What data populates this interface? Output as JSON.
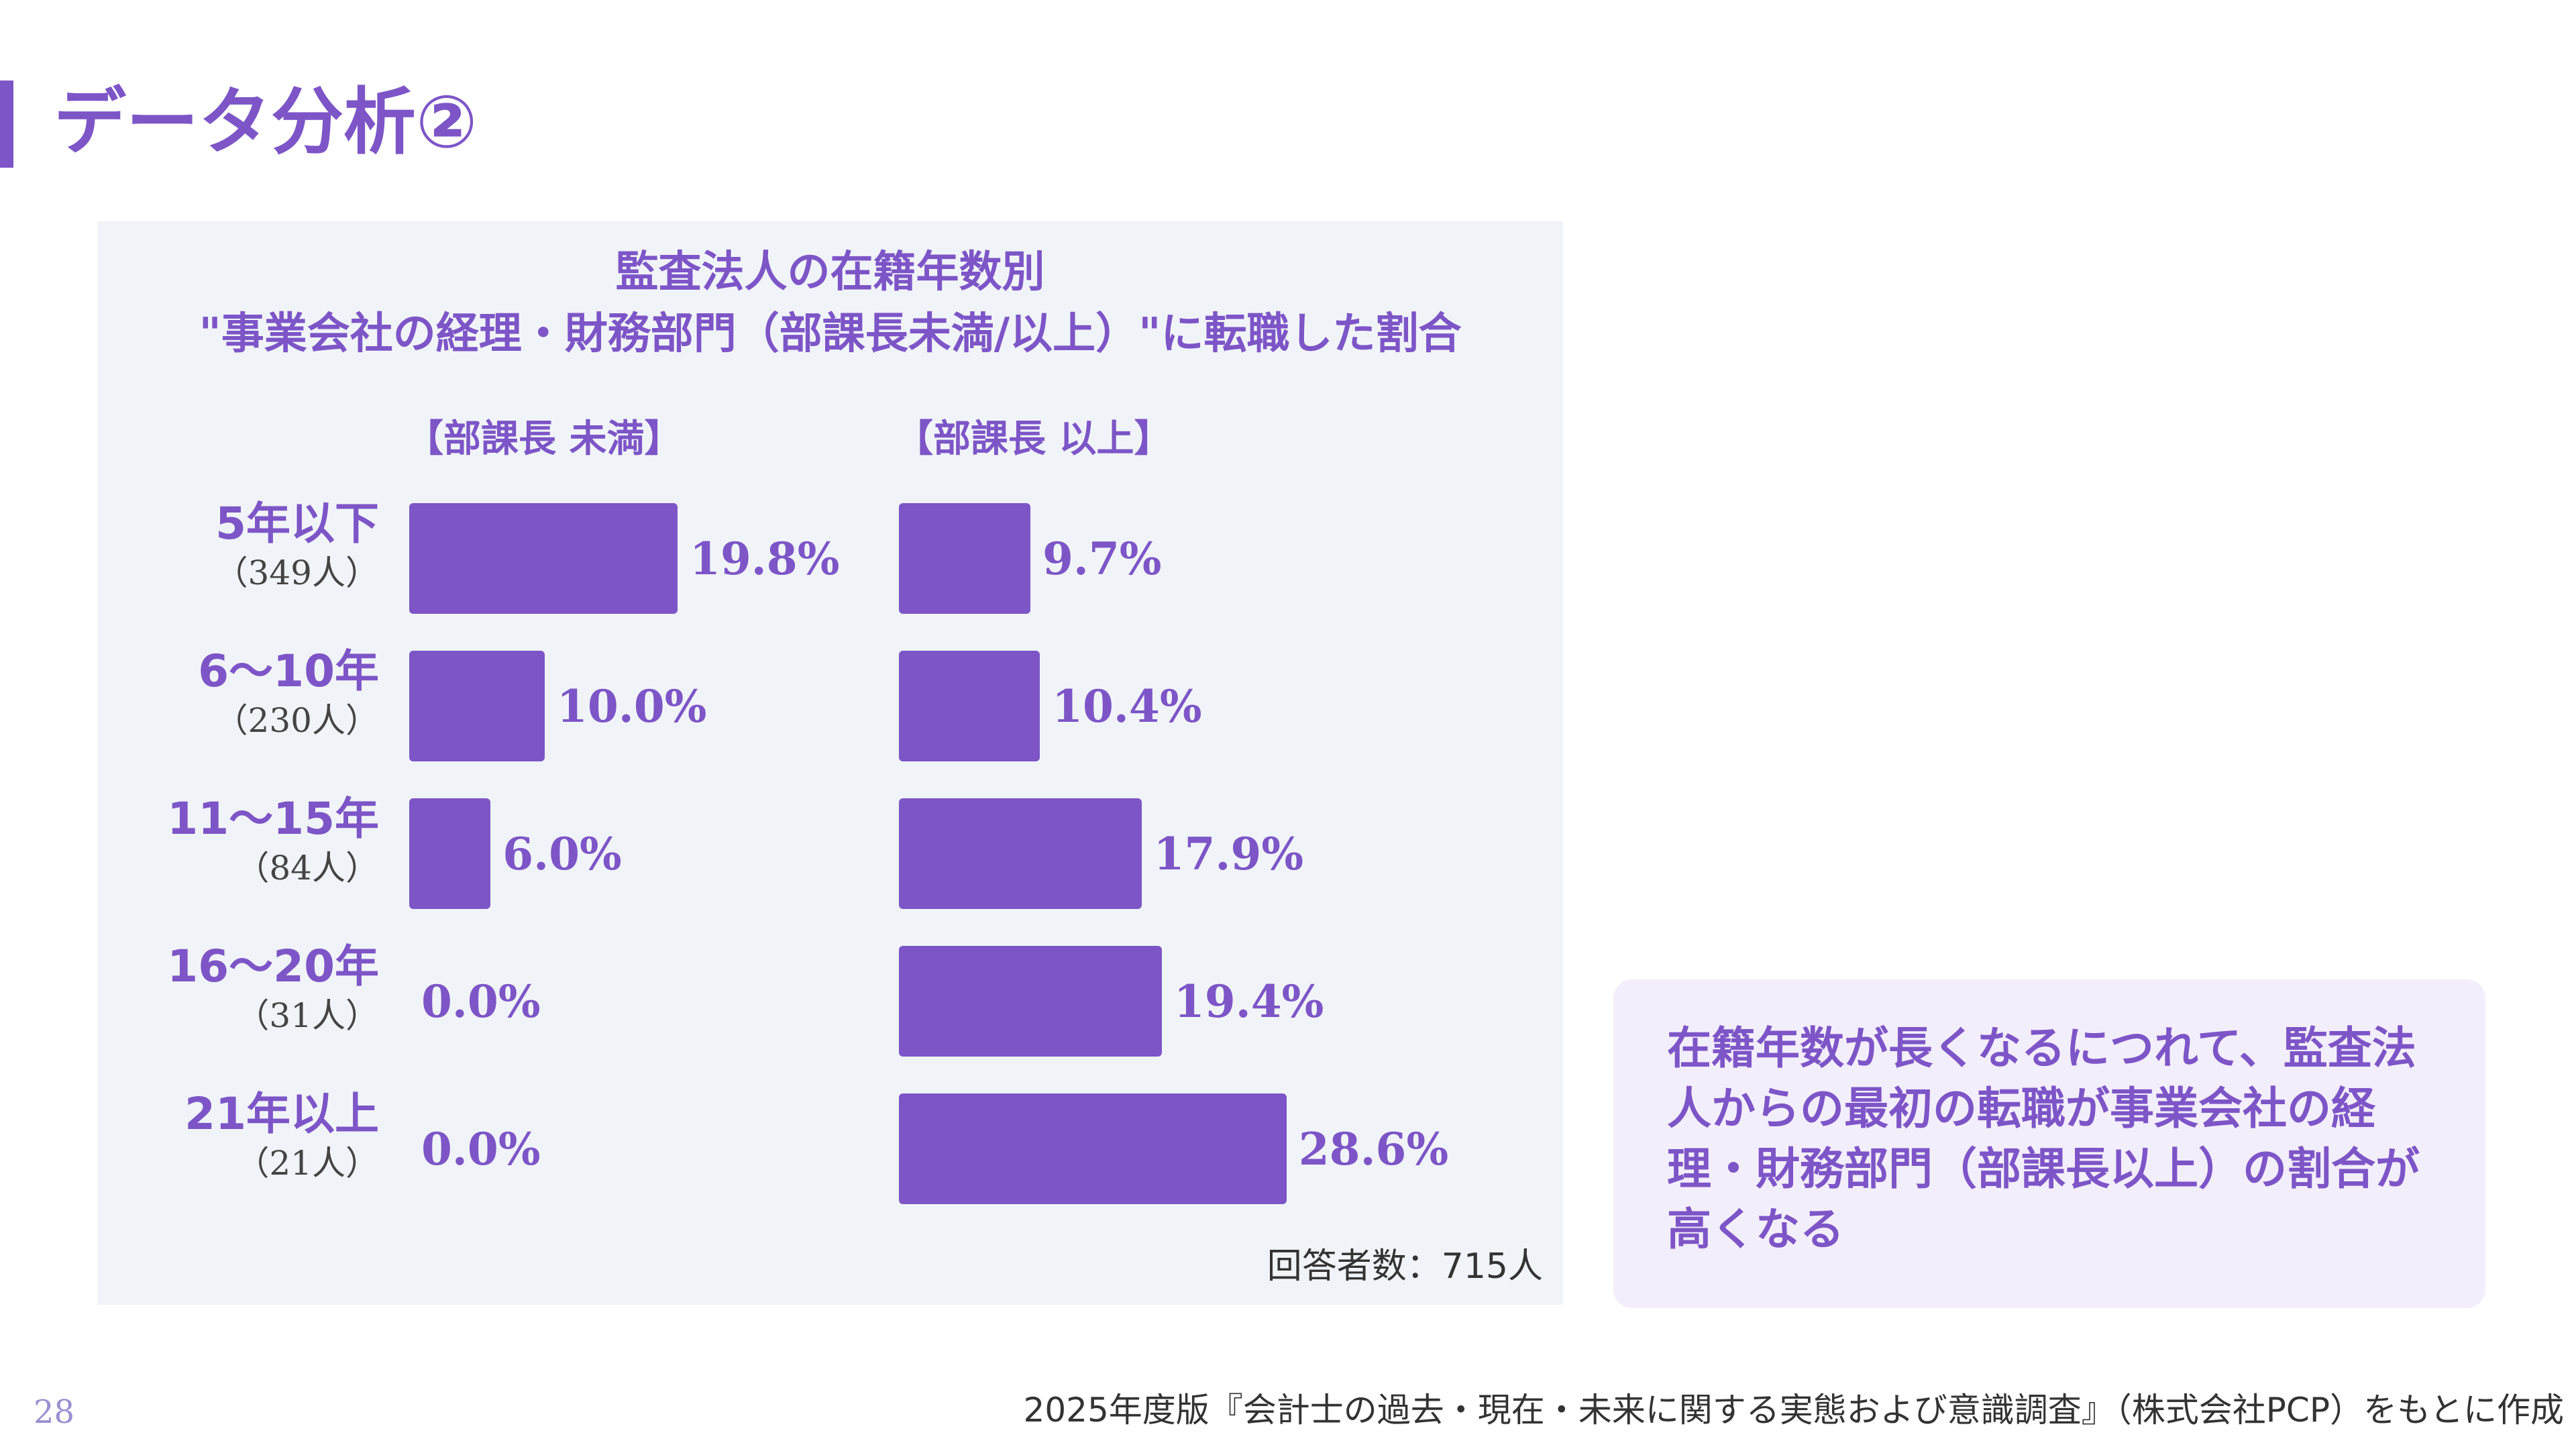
{
  "slide": {
    "title": "データ分析②",
    "page_number": "28",
    "source": "2025年度版『会計士の過去・現在・未来に関する実態および意識調査』（株式会社PCP）をもとに作成"
  },
  "note": {
    "text": "在籍年数が長くなるにつれて、監査法人からの最初の転職が事業会社の経理・財務部門（部課長以上）の割合が高くなる"
  },
  "chart_data": {
    "type": "bar",
    "orientation": "horizontal",
    "title_line1": "監査法人の在籍年数別",
    "title_line2": "\"事業会社の経理・財務部門（部課長未満/以上）\"に転職した割合",
    "categories": [
      "5年以下",
      "6〜10年",
      "11〜15年",
      "16〜20年",
      "21年以上"
    ],
    "category_counts": [
      "（349人）",
      "（230人）",
      "（84人）",
      "（31人）",
      "（21人）"
    ],
    "series": [
      {
        "name": "【部課長 未満】",
        "values": [
          19.8,
          10.0,
          6.0,
          0.0,
          0.0
        ],
        "labels": [
          "19.8%",
          "10.0%",
          "6.0%",
          "0.0%",
          "0.0%"
        ]
      },
      {
        "name": "【部課長 以上】",
        "values": [
          9.7,
          10.4,
          17.9,
          19.4,
          28.6
        ],
        "labels": [
          "9.7%",
          "10.4%",
          "17.9%",
          "19.4%",
          "28.6%"
        ]
      }
    ],
    "respondents": "回答者数：715人",
    "bar_color": "#7d55c7",
    "background_color": "#f0f4f8",
    "grid": false
  }
}
